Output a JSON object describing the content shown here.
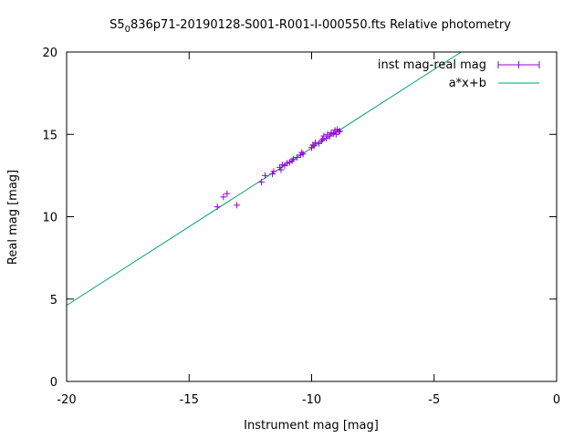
{
  "chart_data": {
    "type": "scatter",
    "title": {
      "prefix": "S5",
      "subscript": "0",
      "suffix": "836p71-20190128-S001-R001-I-000550.fts Relative photometry"
    },
    "xlabel": "Instrument mag [mag]",
    "ylabel": "Real mag [mag]",
    "xlim": [
      -20,
      0
    ],
    "ylim": [
      0,
      20
    ],
    "xticks": [
      -20,
      -15,
      -10,
      -5,
      0
    ],
    "yticks": [
      0,
      5,
      10,
      15,
      20
    ],
    "grid": false,
    "legend_position": "top-right",
    "series": [
      {
        "name": "inst mag-real mag",
        "kind": "points",
        "marker": "+",
        "color": "#9400d3",
        "points": [
          [
            -13.85,
            10.6
          ],
          [
            -13.6,
            11.2
          ],
          [
            -13.45,
            11.4
          ],
          [
            -13.05,
            10.7
          ],
          [
            -12.05,
            12.1
          ],
          [
            -11.9,
            12.5
          ],
          [
            -11.6,
            12.6
          ],
          [
            -11.55,
            12.75
          ],
          [
            -11.3,
            13.0
          ],
          [
            -11.25,
            12.85
          ],
          [
            -11.2,
            13.15
          ],
          [
            -11.1,
            13.1
          ],
          [
            -11.0,
            13.25
          ],
          [
            -10.9,
            13.3
          ],
          [
            -10.8,
            13.4
          ],
          [
            -10.75,
            13.5
          ],
          [
            -10.6,
            13.6
          ],
          [
            -10.45,
            13.75
          ],
          [
            -10.4,
            13.9
          ],
          [
            -10.35,
            13.8
          ],
          [
            -10.0,
            14.2
          ],
          [
            -9.95,
            14.35
          ],
          [
            -9.9,
            14.3
          ],
          [
            -9.85,
            14.5
          ],
          [
            -9.7,
            14.45
          ],
          [
            -9.6,
            14.6
          ],
          [
            -9.55,
            14.7
          ],
          [
            -9.5,
            14.9
          ],
          [
            -9.4,
            14.75
          ],
          [
            -9.35,
            15.0
          ],
          [
            -9.25,
            14.9
          ],
          [
            -9.2,
            15.1
          ],
          [
            -9.1,
            15.05
          ],
          [
            -9.05,
            15.25
          ],
          [
            -9.0,
            15.0
          ],
          [
            -8.95,
            15.3
          ],
          [
            -8.9,
            15.15
          ],
          [
            -8.85,
            15.2
          ]
        ]
      },
      {
        "name": "a*x+b",
        "kind": "line",
        "color": "#009e73",
        "slope": 0.955,
        "intercept": 23.72
      }
    ]
  }
}
